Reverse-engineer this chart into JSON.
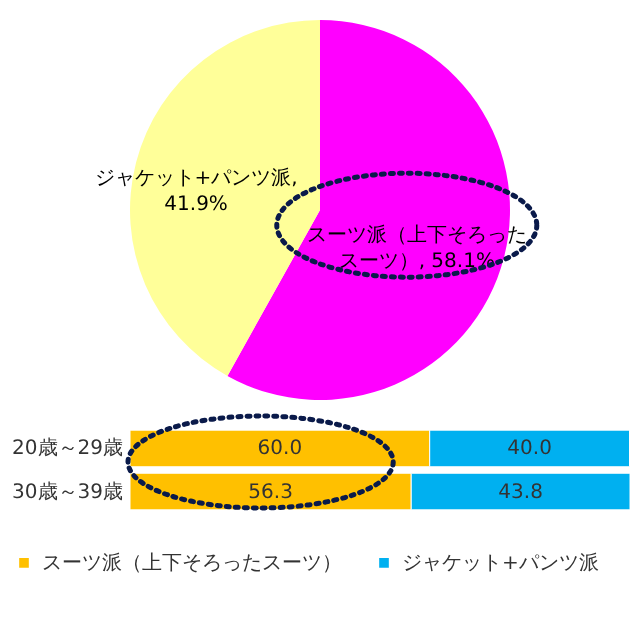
{
  "chart_data": [
    {
      "type": "pie",
      "categories": [
        "スーツ派（上下そろったスーツ）",
        "ジャケット+パンツ派"
      ],
      "values": [
        58.1,
        41.9
      ],
      "colors": [
        "#ff00ff",
        "#ffff99"
      ],
      "value_labels": [
        ", 58.1%",
        ", 41.9%"
      ],
      "legend": false
    },
    {
      "type": "bar",
      "orientation": "horizontal",
      "stacked": true,
      "categories": [
        "20歳～29歳",
        "30歳～39歳"
      ],
      "series": [
        {
          "name": "スーツ派（上下そろったスーツ）",
          "color": "#ffc000",
          "values": [
            60.0,
            56.3
          ],
          "value_labels": [
            "60.0",
            "56.3"
          ]
        },
        {
          "name": "ジャケット+パンツ派",
          "color": "#00b0f0",
          "values": [
            40.0,
            43.8
          ],
          "value_labels": [
            "40.0",
            "43.8"
          ]
        }
      ],
      "legend": "bottom",
      "tick_labels": "y"
    }
  ]
}
